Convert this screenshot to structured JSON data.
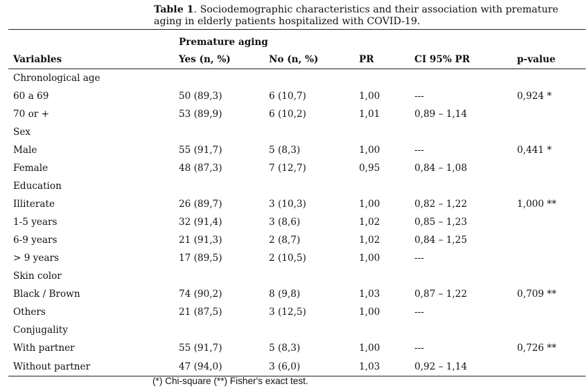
{
  "caption": {
    "label": "Table 1",
    "text": ". Sociodemographic characteristics and their association with premature aging in elderly patients hospitalized with COVID-19."
  },
  "header": {
    "group": "Premature aging",
    "cols": [
      "Variables",
      "Yes (n, %)",
      "No (n, %)",
      "PR",
      "CI 95% PR",
      "p-value"
    ]
  },
  "rows": [
    [
      "Chronological age",
      "",
      "",
      "",
      "",
      ""
    ],
    [
      "60 a 69",
      "50 (89,3)",
      "6 (10,7)",
      "1,00",
      "---",
      "0,924 *"
    ],
    [
      "70 or +",
      "53 (89,9)",
      "6 (10,2)",
      "1,01",
      "0,89 – 1,14",
      ""
    ],
    [
      "Sex",
      "",
      "",
      "",
      "",
      ""
    ],
    [
      "Male",
      "55 (91,7)",
      "5 (8,3)",
      "1,00",
      "---",
      "0,441 *"
    ],
    [
      "Female",
      "48 (87,3)",
      "7 (12,7)",
      "0,95",
      "0,84 – 1,08",
      ""
    ],
    [
      "Education",
      "",
      "",
      "",
      "",
      ""
    ],
    [
      "Illiterate",
      "26 (89,7)",
      "3 (10,3)",
      "1,00",
      "0,82 – 1,22",
      "1,000 **"
    ],
    [
      "1-5 years",
      "32 (91,4)",
      "3 (8,6)",
      "1,02",
      "0,85 – 1,23",
      ""
    ],
    [
      "6-9 years",
      "21 (91,3)",
      "2 (8,7)",
      "1,02",
      "0,84 – 1,25",
      ""
    ],
    [
      "> 9 years",
      "17 (89,5)",
      "2 (10,5)",
      "1,00",
      "---",
      ""
    ],
    [
      "Skin color",
      "",
      "",
      "",
      "",
      ""
    ],
    [
      "Black / Brown",
      "74 (90,2)",
      "8 (9,8)",
      "1,03",
      "0,87 – 1,22",
      "0,709 **"
    ],
    [
      "Others",
      "21 (87,5)",
      "3 (12,5)",
      "1,00",
      "---",
      ""
    ],
    [
      "Conjugality",
      "",
      "",
      "",
      "",
      ""
    ],
    [
      "With partner",
      "55 (91,7)",
      "5 (8,3)",
      "1,00",
      "---",
      "0,726 **"
    ],
    [
      "Without partner",
      "47 (94,0)",
      "3 (6,0)",
      "1,03",
      "0,92 – 1,14",
      ""
    ]
  ],
  "footnote": "(*) Chi-square (**) Fisher's exact test."
}
